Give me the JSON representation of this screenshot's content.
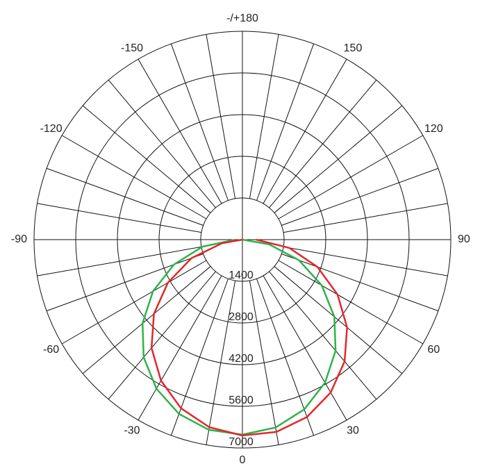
{
  "chart_data": {
    "type": "polar",
    "angle_ticks": [
      0,
      30,
      60,
      90,
      120,
      150,
      {
        "value": 180,
        "label": "-/+180"
      },
      -150,
      -120,
      -90,
      -60,
      -30
    ],
    "angle_grid_step": 10,
    "rlim": [
      0,
      7000
    ],
    "rticks": [
      1400,
      2800,
      4200,
      5600,
      7000
    ],
    "grid": true,
    "series": [
      {
        "color": "#2db34a",
        "angles": [
          -90,
          -80,
          -70,
          -60,
          -50,
          -40,
          -30,
          -20,
          -10,
          0,
          10,
          20,
          30,
          40,
          50,
          60,
          70,
          80,
          90
        ],
        "values": [
          230,
          1360,
          2450,
          3470,
          4380,
          5160,
          5780,
          6230,
          6490,
          6550,
          6410,
          6070,
          5550,
          4870,
          4030,
          3080,
          2020,
          910,
          0
        ]
      },
      {
        "color": "#e3262b",
        "angles": [
          -90,
          -80,
          -70,
          -60,
          -50,
          -40,
          -30,
          -20,
          -10,
          0,
          10,
          20,
          30,
          40,
          50,
          60,
          70,
          80,
          90
        ],
        "values": [
          0,
          690,
          1820,
          2890,
          3880,
          4750,
          5470,
          6030,
          6400,
          6580,
          6560,
          6340,
          5930,
          5340,
          4590,
          3690,
          2680,
          1600,
          460
        ]
      }
    ]
  }
}
